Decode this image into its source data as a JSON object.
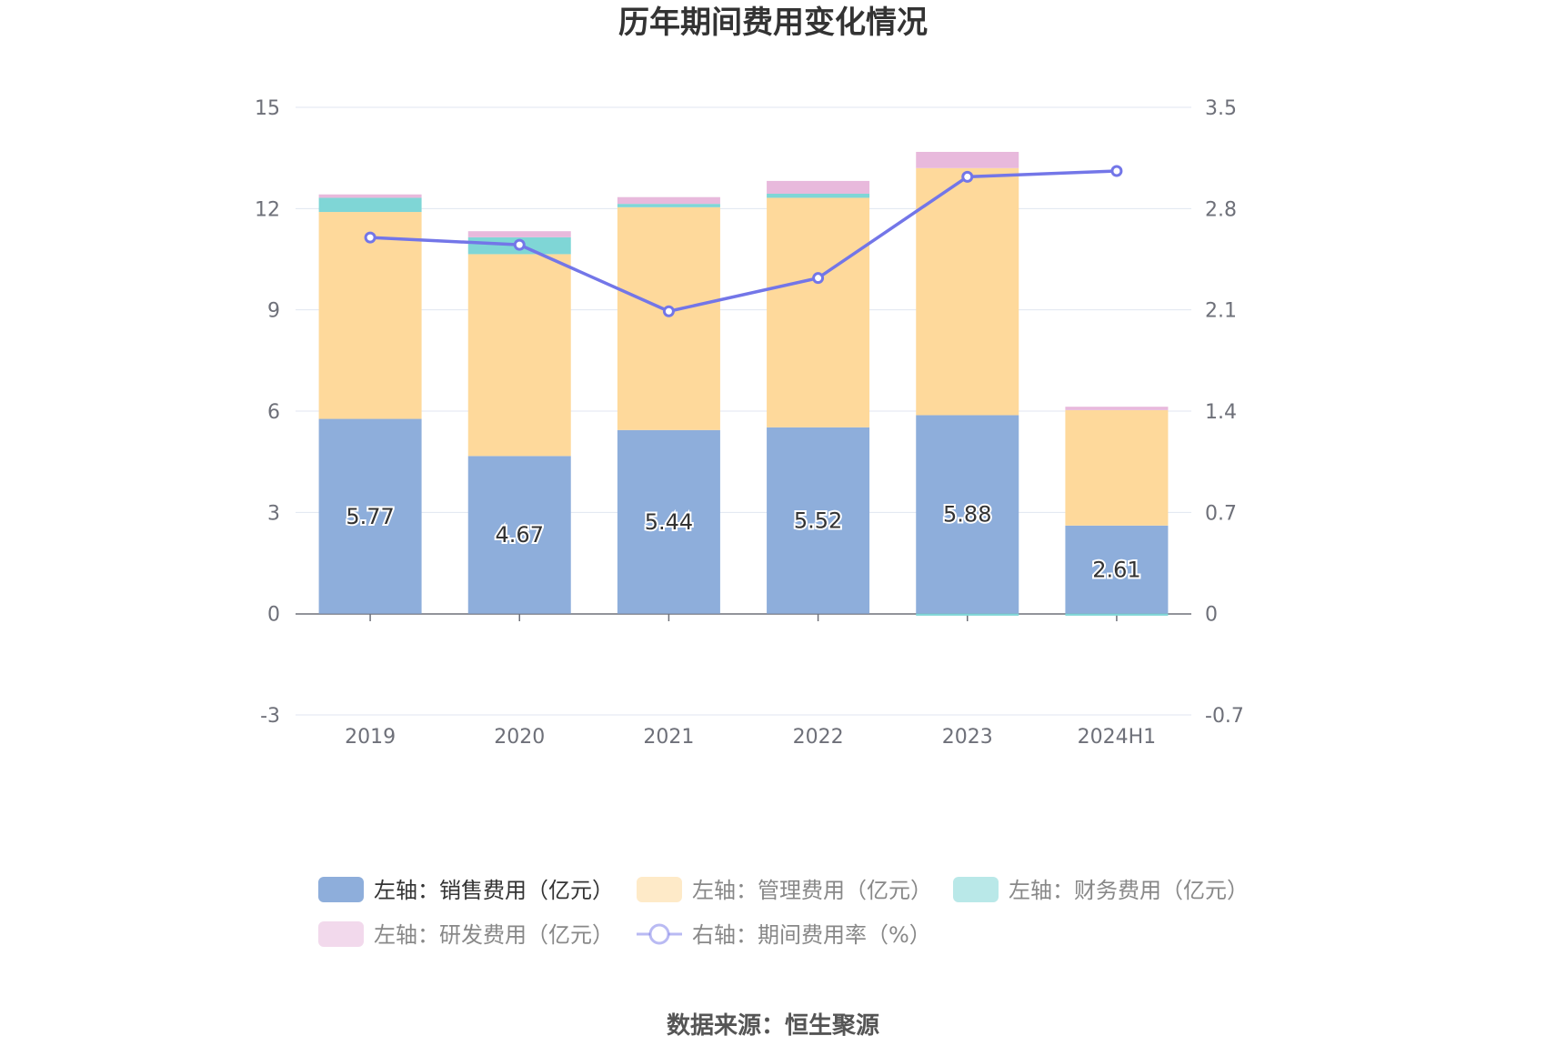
{
  "title": "历年期间费用变化情况",
  "source": "数据来源：恒生聚源",
  "chart_data": {
    "type": "bar",
    "stacked": true,
    "categories": [
      "2019",
      "2020",
      "2021",
      "2022",
      "2023",
      "2024H1"
    ],
    "y_left": {
      "min": -3,
      "max": 15,
      "ticks": [
        "15",
        "12",
        "9",
        "6",
        "3",
        "0",
        "-3"
      ]
    },
    "y_right": {
      "min": -0.7,
      "max": 3.5,
      "ticks": [
        "3.5",
        "2.8",
        "2.1",
        "1.4",
        "0.7",
        "0",
        "-0.7"
      ]
    },
    "grid": true,
    "legend_position": "bottom",
    "series": [
      {
        "name": "左轴：销售费用（亿元）",
        "axis": "left",
        "type": "bar",
        "color": "#8eaedb",
        "values": [
          5.77,
          4.67,
          5.44,
          5.52,
          5.88,
          2.61
        ],
        "show_labels": true,
        "labels": [
          "5.77",
          "4.67",
          "5.44",
          "5.52",
          "5.88",
          "2.61"
        ]
      },
      {
        "name": "左轴：管理费用（亿元）",
        "axis": "left",
        "type": "bar",
        "color": "#fed99b",
        "values": [
          6.13,
          5.98,
          6.6,
          6.8,
          7.32,
          3.42
        ]
      },
      {
        "name": "左轴：财务费用（亿元）",
        "axis": "left",
        "type": "bar",
        "color": "#7fd6d6",
        "values": [
          0.42,
          0.5,
          0.1,
          0.12,
          -0.06,
          -0.06
        ]
      },
      {
        "name": "左轴：研发费用（亿元）",
        "axis": "left",
        "type": "bar",
        "color": "#e8b9dc",
        "values": [
          0.1,
          0.18,
          0.2,
          0.38,
          0.48,
          0.1
        ]
      },
      {
        "name": "右轴：期间费用率（%）",
        "axis": "right",
        "type": "line",
        "color": "#7376e8",
        "values": [
          2.6,
          2.55,
          2.09,
          2.32,
          3.02,
          3.06
        ]
      }
    ]
  }
}
